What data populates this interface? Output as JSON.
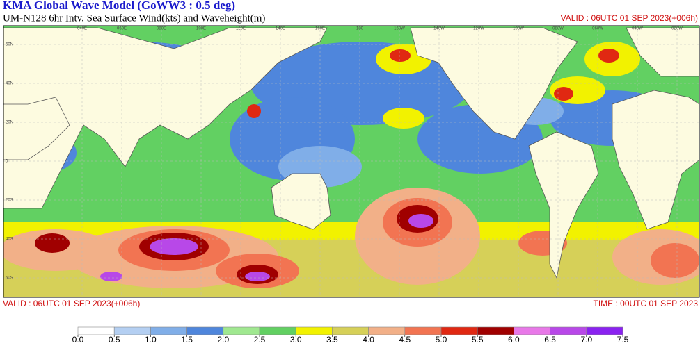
{
  "header": {
    "title": "KMA  Global Wave Model (GoWW3 : 0.5 deg)",
    "subtitle": "UM-N128  6hr Intv. Sea Surface Wind(kts) and Waveheight(m)",
    "valid_top": "VALID : 06UTC 01 SEP 2023(+006h)"
  },
  "footer": {
    "valid": "VALID : 06UTC 01 SEP 2023(+006h)",
    "time": "TIME : 00UTC 01 SEP 2023"
  },
  "map": {
    "lon_labels": [
      "040E",
      "060E",
      "080E",
      "100E",
      "120E",
      "140E",
      "160E",
      "180",
      "160W",
      "140W",
      "120W",
      "100W",
      "080W",
      "060W",
      "040W",
      "020W"
    ],
    "lat_labels": [
      "60N",
      "40N",
      "20N",
      "0",
      "20S",
      "40S",
      "60S"
    ]
  },
  "legend": {
    "ticks": [
      {
        "value": 0,
        "label": "0.0"
      },
      {
        "value": 0.5,
        "label": "0.5"
      },
      {
        "value": 1,
        "label": "1.0"
      },
      {
        "value": 1.5,
        "label": "1.5"
      },
      {
        "value": 2,
        "label": "2.0"
      },
      {
        "value": 2.5,
        "label": "2.5"
      },
      {
        "value": 3,
        "label": "3.0"
      },
      {
        "value": 3.5,
        "label": "3.5"
      },
      {
        "value": 4,
        "label": "4.0"
      },
      {
        "value": 4.5,
        "label": "4.5"
      },
      {
        "value": 5,
        "label": "5.0"
      },
      {
        "value": 5.5,
        "label": "5.5"
      },
      {
        "value": 6,
        "label": "6.0"
      },
      {
        "value": 6.5,
        "label": "6.5"
      },
      {
        "value": 7,
        "label": "7.0"
      },
      {
        "value": 7.5,
        "label": "7.5"
      }
    ],
    "colors": [
      "#ffffff",
      "#b4cff2",
      "#80aee8",
      "#4f86dc",
      "#a0e890",
      "#62d062",
      "#f2f200",
      "#d6d058",
      "#f2b088",
      "#f27452",
      "#e02812",
      "#a00000",
      "#e878e8",
      "#b848e8",
      "#8a22f0"
    ]
  }
}
